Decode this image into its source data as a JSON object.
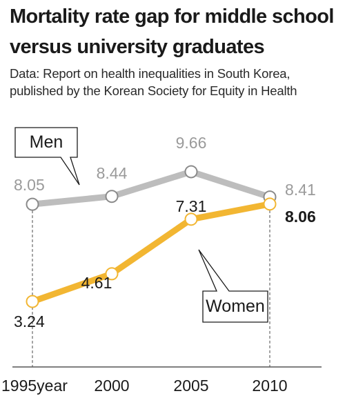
{
  "header": {
    "title_line1": "Mortality rate gap for middle school",
    "title_line2": "versus university graduates",
    "source_line1": "Data: Report on health inequalities in South Korea,",
    "source_line2": "published by the Korean Society for Equity in Health"
  },
  "chart_data": {
    "type": "line",
    "x": [
      "1995year",
      "2000",
      "2005",
      "2010"
    ],
    "ylim": [
      0,
      11
    ],
    "grid": false,
    "series": [
      {
        "name": "Men",
        "values": [
          8.05,
          8.44,
          9.66,
          8.41
        ],
        "labels": [
          "8.05",
          "8.44",
          "9.66",
          "8.41"
        ],
        "color": "#bdbdbd",
        "label_color": "#9a9a9a"
      },
      {
        "name": "Women",
        "values": [
          3.24,
          4.61,
          7.31,
          8.06
        ],
        "labels": [
          "3.24",
          "4.61",
          "7.31",
          "8.06"
        ],
        "color": "#f2b632",
        "label_color": "#1a1a1a"
      }
    ]
  }
}
